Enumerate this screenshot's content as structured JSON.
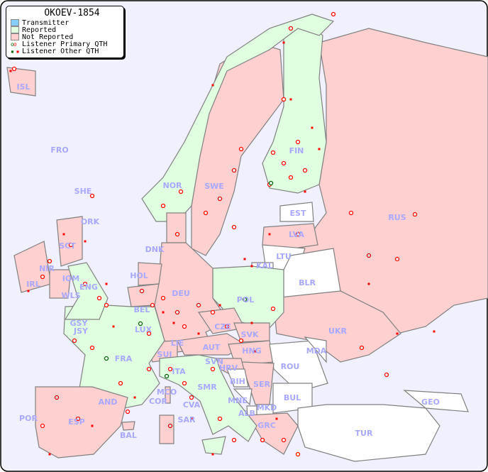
{
  "title": "OKOEV-1854",
  "legend": {
    "transmitter": {
      "label": "Transmitter",
      "color": "#87cefa"
    },
    "reported": {
      "label": "Reported",
      "color": "#e0ffe0"
    },
    "not_reported": {
      "label": "Not Reported",
      "color": "#ffd0d0"
    },
    "primary": {
      "label": "Listener Primary QTH"
    },
    "other": {
      "label": "Listener Other QTH"
    }
  },
  "colors": {
    "sea": "#f0f0ff",
    "no_data": "#ffffff",
    "marker": "#ff0000",
    "marker_alt": "#006400",
    "label": "#a8a8ff"
  },
  "countries": {
    "ISL": {
      "label": "ISL",
      "status": "not_reported"
    },
    "FRO": {
      "label": "FRO",
      "status": "none"
    },
    "SHE": {
      "label": "SHE",
      "status": "none"
    },
    "ORK": {
      "label": "ORK",
      "status": "none"
    },
    "NOR": {
      "label": "NOR",
      "status": "reported"
    },
    "SWE": {
      "label": "SWE",
      "status": "not_reported"
    },
    "FIN": {
      "label": "FIN",
      "status": "reported"
    },
    "EST": {
      "label": "EST",
      "status": "none"
    },
    "LVA": {
      "label": "LVA",
      "status": "not_reported"
    },
    "LTU": {
      "label": "LTU",
      "status": "none"
    },
    "KAL": {
      "label": "KAL",
      "status": "none"
    },
    "BLR": {
      "label": "BLR",
      "status": "none"
    },
    "RUS": {
      "label": "RUS",
      "status": "not_reported"
    },
    "UKR": {
      "label": "UKR",
      "status": "not_reported"
    },
    "MDA": {
      "label": "MDA",
      "status": "none"
    },
    "ROU": {
      "label": "ROU",
      "status": "none"
    },
    "BUL": {
      "label": "BUL",
      "status": "none"
    },
    "GEO": {
      "label": "GEO",
      "status": "none"
    },
    "TUR": {
      "label": "TUR",
      "status": "none"
    },
    "DNK": {
      "label": "DNK",
      "status": "not_reported"
    },
    "HOL": {
      "label": "HOL",
      "status": "not_reported"
    },
    "BEL": {
      "label": "BEL",
      "status": "not_reported"
    },
    "LUX": {
      "label": "LUX",
      "status": "reported"
    },
    "DEU": {
      "label": "DEU",
      "status": "not_reported"
    },
    "POL": {
      "label": "POL",
      "status": "reported"
    },
    "CZE": {
      "label": "CZE",
      "status": "not_reported"
    },
    "SVK": {
      "label": "SVK",
      "status": "not_reported"
    },
    "HNG": {
      "label": "HNG",
      "status": "not_reported"
    },
    "AUT": {
      "label": "AUT",
      "status": "not_reported"
    },
    "LIE": {
      "label": "LIE",
      "status": "not_reported"
    },
    "SUI": {
      "label": "SUI",
      "status": "not_reported"
    },
    "SVN": {
      "label": "SVN",
      "status": "reported"
    },
    "HRV": {
      "label": "HRV",
      "status": "not_reported"
    },
    "BIH": {
      "label": "BIH",
      "status": "none"
    },
    "SRB": {
      "label": "SER",
      "status": "not_reported"
    },
    "MNE": {
      "label": "MNE",
      "status": "none"
    },
    "ALB": {
      "label": "ALB",
      "status": "none"
    },
    "MKD": {
      "label": "MKD",
      "status": "none"
    },
    "GRC": {
      "label": "GRC",
      "status": "not_reported"
    },
    "ITA": {
      "label": "ITA",
      "status": "reported"
    },
    "SMR": {
      "label": "SMR",
      "status": "reported"
    },
    "CVA": {
      "label": "CVA",
      "status": "reported"
    },
    "MCO": {
      "label": "MCO",
      "status": "reported"
    },
    "COR": {
      "label": "COR",
      "status": "not_reported"
    },
    "SAR": {
      "label": "SAR",
      "status": "not_reported"
    },
    "FRA": {
      "label": "FRA",
      "status": "reported"
    },
    "AND": {
      "label": "AND",
      "status": "not_reported"
    },
    "ESP": {
      "label": "ESP",
      "status": "not_reported"
    },
    "POR": {
      "label": "POR",
      "status": "not_reported"
    },
    "BAL": {
      "label": "BAL",
      "status": "not_reported"
    },
    "GSY": {
      "label": "GSY",
      "status": "reported"
    },
    "JSY": {
      "label": "JSY",
      "status": "reported"
    },
    "IRL": {
      "label": "IRL",
      "status": "not_reported"
    },
    "NIR": {
      "label": "NIR",
      "status": "not_reported"
    },
    "IOM": {
      "label": "IOM",
      "status": "not_reported"
    },
    "WLS": {
      "label": "WLS",
      "status": "not_reported"
    },
    "ENG": {
      "label": "ENG",
      "status": "reported"
    },
    "SCT": {
      "label": "SCT",
      "status": "not_reported"
    }
  }
}
